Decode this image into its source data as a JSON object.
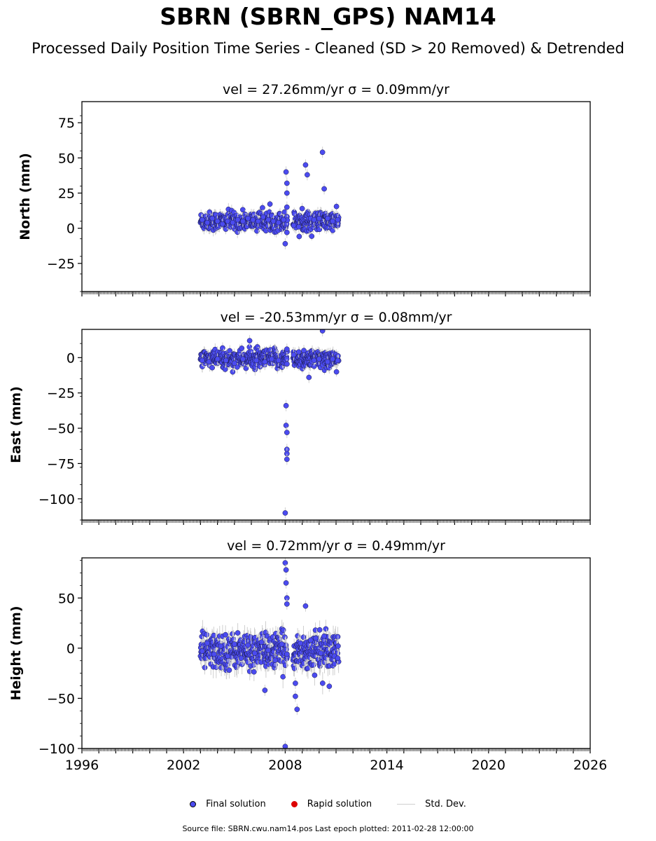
{
  "header": {
    "title": "SBRN (SBRN_GPS) NAM14",
    "subtitle": "Processed Daily Position Time Series - Cleaned (SD > 20 Removed) & Detrended"
  },
  "legend": {
    "items": [
      {
        "label": "Final solution",
        "color": "#4b4bf0",
        "type": "dot"
      },
      {
        "label": "Rapid solution",
        "color": "#dd0000",
        "type": "dot"
      },
      {
        "label": "Std. Dev.",
        "color": "#cfcfcf",
        "type": "line"
      }
    ]
  },
  "footer": {
    "source": "Source file: SBRN.cwu.nam14.pos  Last epoch plotted: 2011-02-28 12:00:00"
  },
  "chart_data": [
    {
      "type": "scatter",
      "title": "vel = 27.26mm/yr   σ = 0.09mm/yr",
      "ylabel": "North (mm)",
      "xlim": [
        1996,
        2026
      ],
      "ylim": [
        -45,
        90
      ],
      "yticks": [
        -25,
        0,
        25,
        50,
        75
      ],
      "series": [
        {
          "name": "Final solution",
          "color": "#4b4bf0",
          "x": [
            2003.1,
            2003.4,
            2003.7,
            2004.0,
            2004.3,
            2004.6,
            2004.9,
            2005.2,
            2005.5,
            2005.8,
            2006.1,
            2006.4,
            2006.7,
            2007.0,
            2007.3,
            2007.6,
            2007.9,
            2008.0,
            2008.05,
            2008.1,
            2008.1,
            2008.1,
            2008.1,
            2008.5,
            2008.8,
            2009.0,
            2009.2,
            2009.3,
            2009.5,
            2009.7,
            2010.0,
            2010.2,
            2010.3,
            2010.5,
            2010.8,
            2011.1
          ],
          "y": [
            6,
            4,
            7,
            5,
            3,
            5,
            4,
            6,
            5,
            7,
            6,
            5,
            8,
            6,
            5,
            4,
            6,
            -11,
            40,
            32,
            25,
            15,
            -3,
            2,
            1,
            14,
            45,
            38,
            7,
            6,
            7,
            54,
            28,
            7,
            5,
            6
          ]
        }
      ],
      "xspan": [
        2003.0,
        2011.15
      ],
      "ycenter": 5,
      "spread": 3.2
    },
    {
      "type": "scatter",
      "title": "vel = -20.53mm/yr   σ = 0.08mm/yr",
      "ylabel": "East (mm)",
      "xlim": [
        1996,
        2026
      ],
      "ylim": [
        -115,
        20
      ],
      "yticks": [
        -100,
        -75,
        -50,
        -25,
        0
      ],
      "series": [
        {
          "name": "Final solution",
          "color": "#4b4bf0",
          "x": [
            2003.1,
            2003.5,
            2004.0,
            2004.5,
            2005.0,
            2005.5,
            2005.9,
            2006.3,
            2006.8,
            2007.2,
            2007.6,
            2008.0,
            2008.05,
            2008.05,
            2008.1,
            2008.1,
            2008.1,
            2008.1,
            2008.1,
            2008.5,
            2008.8,
            2009.1,
            2009.4,
            2009.7,
            2010.0,
            2010.2,
            2010.5,
            2010.8,
            2011.1
          ],
          "y": [
            -2,
            -3,
            -1,
            -2,
            -4,
            -1,
            12,
            -2,
            -3,
            -1,
            -2,
            -110,
            -34,
            -48,
            -53,
            -65,
            -68,
            -72,
            6,
            2,
            4,
            5,
            -14,
            -2,
            -1,
            19,
            -3,
            -1,
            -2
          ]
        }
      ],
      "xspan": [
        2003.0,
        2011.15
      ],
      "ycenter": -1,
      "spread": 3.2
    },
    {
      "type": "scatter",
      "title": "vel = 0.72mm/yr   σ = 0.49mm/yr",
      "ylabel": "Height (mm)",
      "xlim": [
        1996,
        2026
      ],
      "xticks": [
        1996,
        2002,
        2008,
        2014,
        2020,
        2026
      ],
      "ylim": [
        -100,
        90
      ],
      "yticks": [
        -100,
        -50,
        0,
        50
      ],
      "series": [
        {
          "name": "Final solution",
          "color": "#4b4bf0",
          "x": [
            2003.1,
            2003.4,
            2003.8,
            2004.2,
            2004.6,
            2005.0,
            2005.4,
            2005.8,
            2006.2,
            2006.6,
            2006.8,
            2007.0,
            2007.4,
            2007.8,
            2008.0,
            2008.0,
            2008.05,
            2008.05,
            2008.1,
            2008.1,
            2008.1,
            2008.6,
            2008.6,
            2008.7,
            2008.9,
            2009.2,
            2009.5,
            2009.8,
            2010.1,
            2010.3,
            2010.6,
            2010.9,
            2011.1
          ],
          "y": [
            -3,
            5,
            -6,
            2,
            -8,
            4,
            -10,
            3,
            -5,
            6,
            -42,
            -2,
            -12,
            4,
            -98,
            85,
            78,
            65,
            50,
            44,
            -6,
            -35,
            -48,
            -61,
            5,
            42,
            8,
            10,
            -5,
            12,
            -38,
            -8,
            -10
          ]
        }
      ],
      "xspan": [
        2003.0,
        2011.15
      ],
      "ycenter": -3,
      "spread": 8.5
    }
  ]
}
